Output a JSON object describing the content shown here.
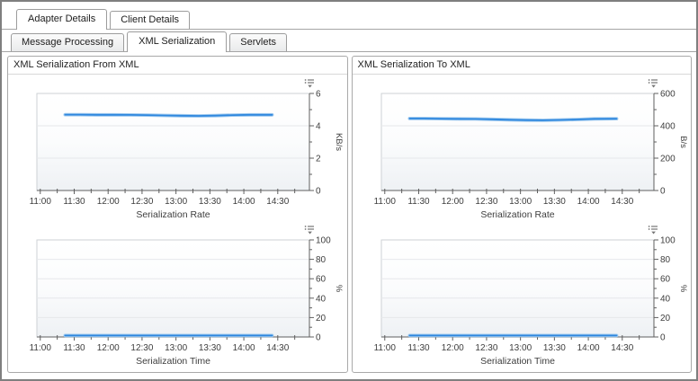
{
  "tabs_primary": [
    {
      "label": "Adapter Details",
      "active": true
    },
    {
      "label": "Client Details",
      "active": false
    }
  ],
  "tabs_secondary": [
    {
      "label": "Message Processing",
      "active": false
    },
    {
      "label": "XML Serialization",
      "active": true
    },
    {
      "label": "Servlets",
      "active": false
    }
  ],
  "panels": [
    {
      "title": "XML Serialization From XML"
    },
    {
      "title": "XML Serialization To XML"
    }
  ],
  "icons": {
    "chart_menu": "legend-menu-icon"
  },
  "colors": {
    "line": "#2e87de",
    "line_halo": "#9ec9ef",
    "axis": "#5f5f5f",
    "tick_label": "#3d3d3d",
    "grid": "#e6e8eb",
    "plot_border": "#cdd1d5",
    "plot_bg_bottom": "#eef1f4"
  },
  "chart_data": [
    {
      "type": "line",
      "panel": "XML Serialization From XML",
      "xlabel": "Serialization Rate",
      "ylabel": "KB/s",
      "ylim": [
        0,
        6
      ],
      "yticks": [
        0,
        2,
        4,
        6
      ],
      "yminor_step": 1,
      "x_tick_labels": [
        "11:00",
        "11:30",
        "12:00",
        "12:30",
        "13:00",
        "13:30",
        "14:00",
        "14:30"
      ],
      "x_domain_minutes": [
        657,
        898
      ],
      "x_minor_step": 15,
      "grid": true,
      "legend": "none",
      "series": [
        {
          "x_minutes": [
            682,
            695,
            710,
            725,
            740,
            755,
            770,
            785,
            800,
            815,
            830,
            845,
            865
          ],
          "values": [
            4.69,
            4.69,
            4.68,
            4.68,
            4.67,
            4.66,
            4.64,
            4.62,
            4.61,
            4.63,
            4.66,
            4.68,
            4.68
          ]
        }
      ]
    },
    {
      "type": "line",
      "panel": "XML Serialization From XML",
      "xlabel": "Serialization Time",
      "ylabel": "%",
      "ylim": [
        0,
        100
      ],
      "yticks": [
        0,
        20,
        40,
        60,
        80,
        100
      ],
      "yminor_step": 10,
      "x_tick_labels": [
        "11:00",
        "11:30",
        "12:00",
        "12:30",
        "13:00",
        "13:30",
        "14:00",
        "14:30"
      ],
      "x_domain_minutes": [
        657,
        898
      ],
      "x_minor_step": 15,
      "grid": true,
      "legend": "none",
      "series": [
        {
          "x_minutes": [
            682,
            695,
            710,
            725,
            740,
            755,
            770,
            785,
            800,
            815,
            830,
            845,
            865
          ],
          "values": [
            1.5,
            1.5,
            1.5,
            1.5,
            1.5,
            1.5,
            1.5,
            1.5,
            1.5,
            1.5,
            1.5,
            1.5,
            1.5
          ]
        }
      ]
    },
    {
      "type": "line",
      "panel": "XML Serialization To XML",
      "xlabel": "Serialization Rate",
      "ylabel": "B/s",
      "ylim": [
        0,
        600
      ],
      "yticks": [
        0,
        200,
        400,
        600
      ],
      "yminor_step": 100,
      "x_tick_labels": [
        "11:00",
        "11:30",
        "12:00",
        "12:30",
        "13:00",
        "13:30",
        "14:00",
        "14:30"
      ],
      "x_domain_minutes": [
        657,
        898
      ],
      "x_minor_step": 15,
      "grid": true,
      "legend": "none",
      "series": [
        {
          "x_minutes": [
            682,
            695,
            710,
            725,
            740,
            755,
            770,
            785,
            800,
            815,
            830,
            845,
            865
          ],
          "values": [
            445,
            445,
            444,
            443,
            442,
            440,
            437,
            435,
            434,
            436,
            439,
            443,
            444
          ]
        }
      ]
    },
    {
      "type": "line",
      "panel": "XML Serialization To XML",
      "xlabel": "Serialization Time",
      "ylabel": "%",
      "ylim": [
        0,
        100
      ],
      "yticks": [
        0,
        20,
        40,
        60,
        80,
        100
      ],
      "yminor_step": 10,
      "x_tick_labels": [
        "11:00",
        "11:30",
        "12:00",
        "12:30",
        "13:00",
        "13:30",
        "14:00",
        "14:30"
      ],
      "x_domain_minutes": [
        657,
        898
      ],
      "x_minor_step": 15,
      "grid": true,
      "legend": "none",
      "series": [
        {
          "x_minutes": [
            682,
            695,
            710,
            725,
            740,
            755,
            770,
            785,
            800,
            815,
            830,
            845,
            865
          ],
          "values": [
            1.5,
            1.5,
            1.5,
            1.5,
            1.5,
            1.5,
            1.5,
            1.5,
            1.5,
            1.5,
            1.5,
            1.5,
            1.5
          ]
        }
      ]
    }
  ]
}
